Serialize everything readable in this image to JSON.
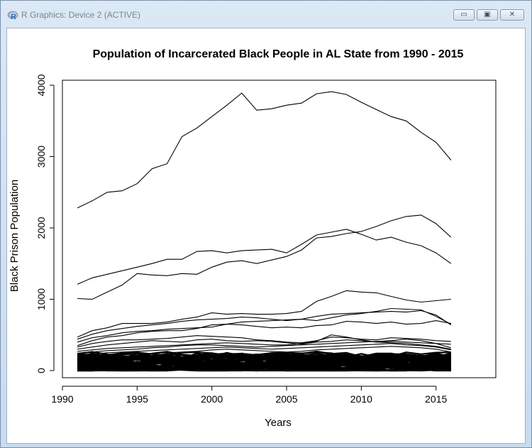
{
  "window": {
    "title": "R Graphics: Device 2 (ACTIVE)",
    "icon": "r-logo-icon",
    "controls": [
      "minimize-icon",
      "maximize-icon",
      "close-icon"
    ],
    "control_glyphs": {
      "minimize": "▭",
      "maximize": "▣",
      "close": "✕"
    }
  },
  "chart_data": {
    "type": "line",
    "title": "Population of Incarcerated Black People in AL State from 1990 - 2015",
    "xlabel": "Years",
    "ylabel": "Black Prison Population",
    "xlim": [
      1990,
      2019
    ],
    "ylim": [
      -100,
      4070
    ],
    "xticks": [
      1990,
      1995,
      2000,
      2005,
      2010,
      2015
    ],
    "yticks": [
      0,
      1000,
      2000,
      3000,
      4000
    ],
    "grid": false,
    "line_color": "#000000",
    "x": [
      1991,
      1992,
      1993,
      1994,
      1995,
      1996,
      1997,
      1998,
      1999,
      2000,
      2001,
      2002,
      2003,
      2004,
      2005,
      2006,
      2007,
      2008,
      2009,
      2010,
      2011,
      2012,
      2013,
      2014,
      2015,
      2016
    ],
    "series": [
      {
        "values": [
          2280,
          2380,
          2500,
          2520,
          2620,
          2830,
          2900,
          3280,
          3400,
          3560,
          3720,
          3890,
          3650,
          3670,
          3720,
          3750,
          3880,
          3910,
          3870,
          3760,
          3660,
          3560,
          3500,
          3340,
          3200,
          2950
        ]
      },
      {
        "values": [
          1210,
          1300,
          1350,
          1400,
          1450,
          1500,
          1560,
          1560,
          1670,
          1680,
          1650,
          1680,
          1690,
          1700,
          1650,
          1770,
          1900,
          1940,
          1980,
          1910,
          1830,
          1870,
          1800,
          1750,
          1650,
          1500
        ]
      },
      {
        "values": [
          1010,
          1000,
          1100,
          1200,
          1360,
          1340,
          1330,
          1360,
          1350,
          1450,
          1520,
          1540,
          1500,
          1550,
          1600,
          1690,
          1860,
          1880,
          1920,
          1950,
          2020,
          2100,
          2160,
          2180,
          2060,
          1870
        ]
      },
      {
        "values": [
          470,
          560,
          600,
          660,
          660,
          660,
          680,
          720,
          750,
          810,
          790,
          800,
          790,
          790,
          800,
          830,
          970,
          1040,
          1120,
          1100,
          1090,
          1040,
          990,
          960,
          980,
          1000
        ]
      },
      {
        "values": [
          440,
          510,
          560,
          590,
          620,
          640,
          660,
          690,
          710,
          720,
          730,
          750,
          740,
          720,
          700,
          720,
          760,
          790,
          800,
          810,
          820,
          830,
          820,
          840,
          780,
          640
        ]
      },
      {
        "values": [
          400,
          460,
          490,
          530,
          550,
          560,
          580,
          590,
          600,
          610,
          650,
          680,
          690,
          700,
          710,
          720,
          700,
          740,
          780,
          800,
          830,
          870,
          860,
          850,
          760,
          650
        ]
      },
      {
        "values": [
          350,
          420,
          470,
          490,
          530,
          550,
          560,
          560,
          590,
          640,
          650,
          640,
          620,
          600,
          610,
          600,
          630,
          640,
          690,
          680,
          660,
          680,
          650,
          660,
          700,
          660
        ]
      },
      {
        "values": [
          330,
          380,
          410,
          430,
          430,
          440,
          450,
          470,
          490,
          480,
          470,
          460,
          430,
          420,
          400,
          390,
          420,
          470,
          460,
          440,
          430,
          460,
          450,
          440,
          420,
          410
        ]
      },
      {
        "values": [
          300,
          330,
          360,
          380,
          400,
          420,
          410,
          400,
          430,
          440,
          420,
          410,
          420,
          410,
          390,
          370,
          400,
          410,
          430,
          420,
          400,
          410,
          400,
          390,
          380,
          370
        ]
      },
      {
        "values": [
          270,
          290,
          310,
          320,
          330,
          340,
          350,
          360,
          370,
          380,
          390,
          380,
          370,
          360,
          360,
          380,
          410,
          500,
          470,
          430,
          400,
          390,
          380,
          360,
          340,
          300
        ]
      },
      {
        "values": [
          240,
          260,
          280,
          290,
          300,
          320,
          330,
          350,
          360,
          360,
          350,
          340,
          330,
          340,
          350,
          360,
          370,
          380,
          390,
          400,
          410,
          420,
          440,
          420,
          380,
          320
        ]
      },
      {
        "values": [
          210,
          230,
          250,
          260,
          270,
          280,
          290,
          300,
          310,
          320,
          330,
          320,
          310,
          300,
          310,
          320,
          330,
          340,
          350,
          360,
          370,
          380,
          360,
          350,
          330,
          290
        ]
      },
      {
        "values": [
          180,
          200,
          210,
          220,
          230,
          240,
          250,
          260,
          270,
          290,
          300,
          290,
          280,
          270,
          260,
          270,
          290,
          300,
          310,
          320,
          330,
          340,
          330,
          320,
          300,
          260
        ]
      }
    ],
    "filler_band": {
      "count": 55,
      "min": 0,
      "max": 230
    }
  }
}
